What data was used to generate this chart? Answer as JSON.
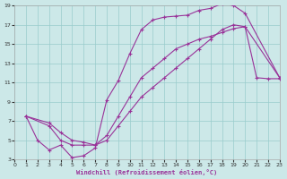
{
  "xlabel": "Windchill (Refroidissement éolien,°C)",
  "bg_color": "#cce8e8",
  "grid_color": "#99cccc",
  "line_color": "#993399",
  "xlim": [
    0,
    23
  ],
  "ylim": [
    3,
    19
  ],
  "xticks": [
    0,
    1,
    2,
    3,
    4,
    5,
    6,
    7,
    8,
    9,
    10,
    11,
    12,
    13,
    14,
    15,
    16,
    17,
    18,
    19,
    20,
    21,
    22,
    23
  ],
  "yticks": [
    3,
    5,
    7,
    9,
    11,
    13,
    15,
    17,
    19
  ],
  "line1_x": [
    1,
    2,
    3,
    4,
    5,
    6,
    7,
    8,
    9,
    10,
    11,
    12,
    13,
    14,
    15,
    16,
    17,
    18,
    19,
    20,
    23
  ],
  "line1_y": [
    7.5,
    5.0,
    4.0,
    4.5,
    3.2,
    3.4,
    4.2,
    9.2,
    11.2,
    14.0,
    16.5,
    17.5,
    17.8,
    17.9,
    18.0,
    18.5,
    18.7,
    19.2,
    19.0,
    18.2,
    11.5
  ],
  "line2_x": [
    1,
    3,
    4,
    5,
    6,
    7,
    8,
    9,
    10,
    11,
    12,
    13,
    14,
    15,
    16,
    17,
    18,
    19,
    20,
    21,
    22,
    23
  ],
  "line2_y": [
    7.5,
    6.5,
    5.0,
    4.5,
    4.5,
    4.5,
    5.0,
    6.5,
    8.0,
    9.5,
    10.5,
    11.5,
    12.5,
    13.5,
    14.5,
    15.5,
    16.5,
    17.0,
    16.8,
    11.5,
    11.4,
    11.4
  ],
  "line3_x": [
    1,
    3,
    4,
    5,
    6,
    7,
    8,
    9,
    10,
    11,
    12,
    13,
    14,
    15,
    16,
    17,
    18,
    19,
    20,
    23
  ],
  "line3_y": [
    7.5,
    6.8,
    5.8,
    5.0,
    4.8,
    4.5,
    5.5,
    7.5,
    9.5,
    11.5,
    12.5,
    13.5,
    14.5,
    15.0,
    15.5,
    15.8,
    16.2,
    16.6,
    16.8,
    11.5
  ]
}
